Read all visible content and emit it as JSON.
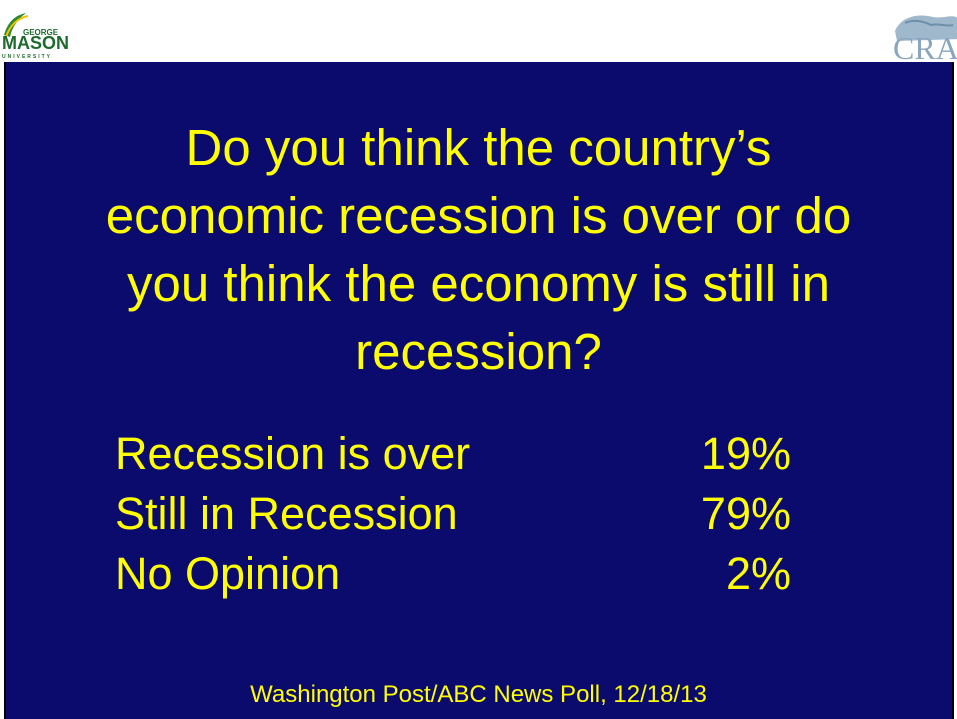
{
  "logos": {
    "left_text_top": "GEORGE",
    "left_text_main": "MASON",
    "left_text_bottom": "UNIVERSITY",
    "right_text": "CRA"
  },
  "question": {
    "lines": [
      "Do you think the country’s",
      "economic recession is over or do",
      "you think the economy is still in",
      "recession?"
    ]
  },
  "results": [
    {
      "label": "Recession is over",
      "value": "19%"
    },
    {
      "label": "Still in Recession",
      "value": "79%"
    },
    {
      "label": "No Opinion",
      "value": "2%"
    }
  ],
  "source": "Washington Post/ABC News Poll, 12/18/13",
  "colors": {
    "background": "#0b0b6e",
    "text": "#ffff00"
  }
}
